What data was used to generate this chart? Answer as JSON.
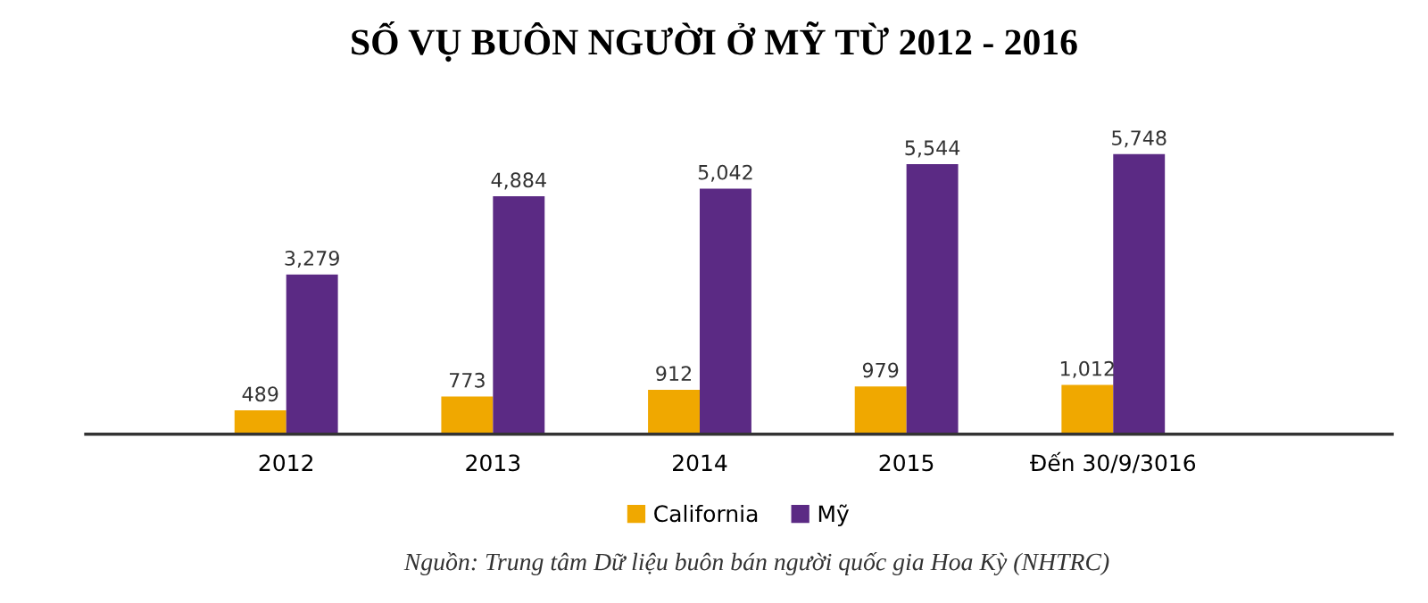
{
  "chart_data": {
    "type": "bar",
    "title": "SỐ VỤ BUÔN NGƯỜI Ở MỸ TỪ 2012 - 2016",
    "categories": [
      "2012",
      "2013",
      "2014",
      "2015",
      "Đến 30/9/3016"
    ],
    "series": [
      {
        "name": "California",
        "color": "#f0a800",
        "values": [
          489,
          773,
          912,
          979,
          1012
        ],
        "value_labels": [
          "489",
          "773",
          "912",
          "979",
          "1,012"
        ]
      },
      {
        "name": "Mỹ",
        "color": "#5b2a84",
        "values": [
          3279,
          4884,
          5042,
          5544,
          5748
        ],
        "value_labels": [
          "3,279",
          "4,884",
          "5,042",
          "5,544",
          "5,748"
        ]
      }
    ],
    "legend": "bottom",
    "grid": false,
    "annotations": [
      "Nguồn: Trung tâm Dữ liệu buôn bán người quốc gia Hoa Kỳ (NHTRC)"
    ]
  }
}
